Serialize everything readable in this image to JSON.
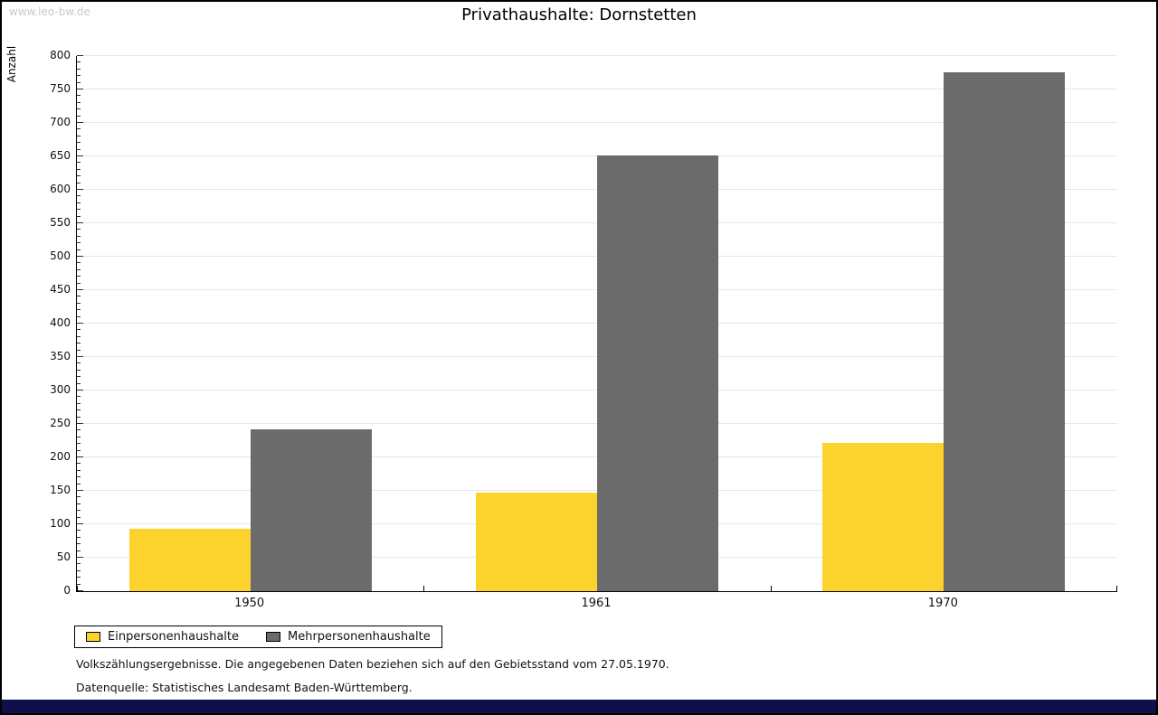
{
  "watermark": "www.leo-bw.de",
  "title": "Privathaushalte: Dornstetten",
  "chart_data": {
    "type": "bar",
    "title": "Privathaushalte: Dornstetten",
    "xlabel": "",
    "ylabel": "Anzahl",
    "categories": [
      "1950",
      "1961",
      "1970"
    ],
    "series": [
      {
        "name": "Einpersonenhaushalte",
        "color": "#FCD32C",
        "values": [
          93,
          148,
          222
        ]
      },
      {
        "name": "Mehrpersonenhaushalte",
        "color": "#6B6B6B",
        "values": [
          242,
          651,
          776
        ]
      }
    ],
    "ylim": [
      0,
      800
    ],
    "y_major_step": 50,
    "y_minor_step": 10,
    "grid": true,
    "legend_position": "bottom-left"
  },
  "footnotes": {
    "line1": "Volkszählungsergebnisse. Die angegebenen Daten beziehen sich auf den Gebietsstand vom 27.05.1970.",
    "line2": "Datenquelle: Statistisches Landesamt Baden-Württemberg."
  },
  "colors": {
    "background": "#ffffff",
    "grid": "#e7e7e7",
    "axis": "#000000",
    "watermark_text": "#c9c9c9",
    "footer_bar": "#0f0f4d"
  }
}
